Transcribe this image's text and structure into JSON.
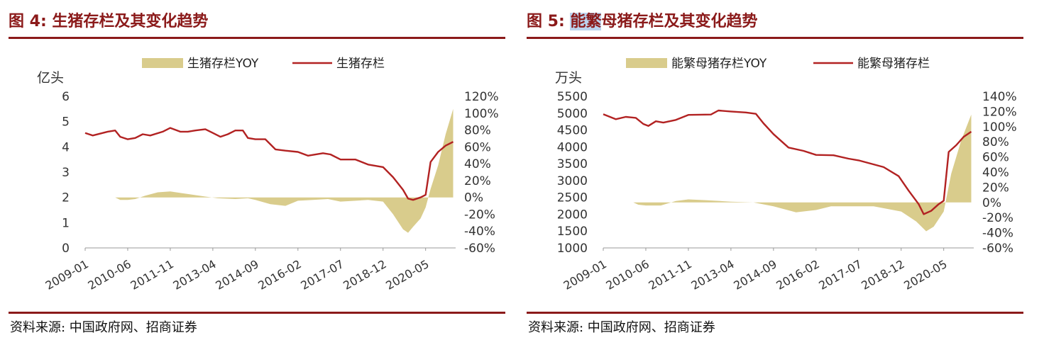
{
  "chart_data": [
    {
      "type": "line",
      "title": "图 4:  生猪存栏及其变化趋势",
      "title_parts": [
        "图 4:  生猪存栏及其变化趋势"
      ],
      "source": "资料来源:  中国政府网、招商证券",
      "ylabel_left": "亿头",
      "ylim_left": [
        0,
        6
      ],
      "yticks_left": [
        "6",
        "5",
        "4",
        "3",
        "2",
        "1",
        "0"
      ],
      "ylim_right": [
        -60,
        120
      ],
      "yticks_right": [
        "120%",
        "100%",
        "80%",
        "60%",
        "40%",
        "20%",
        "0%",
        "-20%",
        "-40%",
        "-60%"
      ],
      "x_labels": [
        "2009-01",
        "2010-06",
        "2011-11",
        "2013-04",
        "2014-09",
        "2016-02",
        "2017-07",
        "2018-12",
        "2020-05"
      ],
      "legend_position": "top",
      "colors": {
        "area": "#d9cc8c",
        "line": "#b22222"
      },
      "series": [
        {
          "name": "生猪存栏YOY",
          "kind": "area",
          "axis": "right",
          "points": [
            [
              "2009-01",
              0
            ],
            [
              "2010-01",
              0
            ],
            [
              "2010-03",
              -3
            ],
            [
              "2010-06",
              -3
            ],
            [
              "2010-09",
              -2
            ],
            [
              "2011-01",
              2
            ],
            [
              "2011-06",
              6
            ],
            [
              "2011-11",
              7
            ],
            [
              "2012-06",
              4
            ],
            [
              "2013-01",
              1
            ],
            [
              "2013-06",
              -1
            ],
            [
              "2014-01",
              -2
            ],
            [
              "2014-06",
              -1
            ],
            [
              "2014-09",
              -3
            ],
            [
              "2015-03",
              -8
            ],
            [
              "2015-09",
              -10
            ],
            [
              "2016-02",
              -4
            ],
            [
              "2016-08",
              -3
            ],
            [
              "2017-02",
              -2
            ],
            [
              "2017-07",
              -5
            ],
            [
              "2018-01",
              -4
            ],
            [
              "2018-06",
              -3
            ],
            [
              "2018-12",
              -5
            ],
            [
              "2019-04",
              -20
            ],
            [
              "2019-08",
              -38
            ],
            [
              "2019-10",
              -42
            ],
            [
              "2019-12",
              -35
            ],
            [
              "2020-03",
              -25
            ],
            [
              "2020-05",
              -12
            ],
            [
              "2020-07",
              10
            ],
            [
              "2020-10",
              38
            ],
            [
              "2021-01",
              75
            ],
            [
              "2021-04",
              105
            ]
          ]
        },
        {
          "name": "生猪存栏",
          "kind": "line",
          "axis": "left",
          "points": [
            [
              "2009-01",
              4.55
            ],
            [
              "2009-04",
              4.45
            ],
            [
              "2009-10",
              4.6
            ],
            [
              "2010-01",
              4.65
            ],
            [
              "2010-03",
              4.4
            ],
            [
              "2010-06",
              4.3
            ],
            [
              "2010-09",
              4.35
            ],
            [
              "2010-12",
              4.5
            ],
            [
              "2011-03",
              4.45
            ],
            [
              "2011-08",
              4.6
            ],
            [
              "2011-11",
              4.75
            ],
            [
              "2012-03",
              4.6
            ],
            [
              "2012-06",
              4.6
            ],
            [
              "2012-09",
              4.65
            ],
            [
              "2013-01",
              4.7
            ],
            [
              "2013-04",
              4.55
            ],
            [
              "2013-07",
              4.4
            ],
            [
              "2013-10",
              4.5
            ],
            [
              "2014-01",
              4.65
            ],
            [
              "2014-04",
              4.65
            ],
            [
              "2014-06",
              4.35
            ],
            [
              "2014-09",
              4.3
            ],
            [
              "2015-01",
              4.3
            ],
            [
              "2015-05",
              3.9
            ],
            [
              "2015-09",
              3.85
            ],
            [
              "2016-02",
              3.8
            ],
            [
              "2016-06",
              3.65
            ],
            [
              "2016-12",
              3.75
            ],
            [
              "2017-03",
              3.7
            ],
            [
              "2017-07",
              3.5
            ],
            [
              "2018-01",
              3.5
            ],
            [
              "2018-06",
              3.3
            ],
            [
              "2018-12",
              3.2
            ],
            [
              "2019-04",
              2.8
            ],
            [
              "2019-08",
              2.3
            ],
            [
              "2019-10",
              1.95
            ],
            [
              "2019-12",
              1.9
            ],
            [
              "2020-03",
              2.0
            ],
            [
              "2020-05",
              2.1
            ],
            [
              "2020-07",
              3.4
            ],
            [
              "2020-10",
              3.8
            ],
            [
              "2021-01",
              4.05
            ],
            [
              "2021-04",
              4.2
            ]
          ]
        }
      ]
    },
    {
      "type": "line",
      "title": "图 5:  能繁母猪存栏及其变化趋势",
      "title_parts": [
        "图 5:  ",
        "能繁",
        "母猪存栏及其变化趋势"
      ],
      "source": "资料来源:  中国政府网、招商证券",
      "ylabel_left": "万头",
      "ylim_left": [
        1000,
        5500
      ],
      "yticks_left": [
        "5500",
        "5000",
        "4500",
        "4000",
        "3500",
        "3000",
        "2500",
        "2000",
        "1500",
        "1000"
      ],
      "ylim_right": [
        -60,
        140
      ],
      "yticks_right": [
        "140%",
        "120%",
        "100%",
        "80%",
        "60%",
        "40%",
        "20%",
        "0%",
        "-20%",
        "-40%",
        "-60%"
      ],
      "x_labels": [
        "2009-01",
        "2010-06",
        "2011-11",
        "2013-04",
        "2014-09",
        "2016-02",
        "2017-07",
        "2018-12",
        "2020-05"
      ],
      "legend_position": "top",
      "colors": {
        "area": "#d9cc8c",
        "line": "#b22222"
      },
      "series": [
        {
          "name": "能繁母猪存栏YOY",
          "kind": "area",
          "axis": "right",
          "points": [
            [
              "2009-01",
              0
            ],
            [
              "2010-01",
              0
            ],
            [
              "2010-03",
              -3
            ],
            [
              "2010-06",
              -4
            ],
            [
              "2010-12",
              -4
            ],
            [
              "2011-06",
              2
            ],
            [
              "2011-11",
              4
            ],
            [
              "2012-06",
              3
            ],
            [
              "2013-04",
              1
            ],
            [
              "2014-01",
              0
            ],
            [
              "2014-09",
              -5
            ],
            [
              "2015-06",
              -13
            ],
            [
              "2016-02",
              -10
            ],
            [
              "2016-08",
              -5
            ],
            [
              "2017-07",
              -5
            ],
            [
              "2018-01",
              -5
            ],
            [
              "2018-12",
              -12
            ],
            [
              "2019-06",
              -25
            ],
            [
              "2019-10",
              -38
            ],
            [
              "2020-01",
              -32
            ],
            [
              "2020-05",
              -12
            ],
            [
              "2020-08",
              38
            ],
            [
              "2020-12",
              82
            ],
            [
              "2021-04",
              116
            ]
          ]
        },
        {
          "name": "能繁母猪存栏",
          "kind": "line",
          "axis": "left",
          "points": [
            [
              "2009-01",
              4970
            ],
            [
              "2009-06",
              4820
            ],
            [
              "2009-10",
              4890
            ],
            [
              "2010-02",
              4860
            ],
            [
              "2010-05",
              4680
            ],
            [
              "2010-07",
              4620
            ],
            [
              "2010-10",
              4760
            ],
            [
              "2011-01",
              4720
            ],
            [
              "2011-06",
              4800
            ],
            [
              "2011-11",
              4950
            ],
            [
              "2012-08",
              4960
            ],
            [
              "2012-11",
              5080
            ],
            [
              "2013-04",
              5050
            ],
            [
              "2013-10",
              5020
            ],
            [
              "2014-02",
              4980
            ],
            [
              "2014-05",
              4700
            ],
            [
              "2014-09",
              4380
            ],
            [
              "2015-03",
              3980
            ],
            [
              "2015-09",
              3880
            ],
            [
              "2016-02",
              3760
            ],
            [
              "2016-09",
              3750
            ],
            [
              "2017-03",
              3650
            ],
            [
              "2017-07",
              3600
            ],
            [
              "2017-12",
              3500
            ],
            [
              "2018-05",
              3400
            ],
            [
              "2018-11",
              3130
            ],
            [
              "2019-03",
              2700
            ],
            [
              "2019-07",
              2300
            ],
            [
              "2019-09",
              2000
            ],
            [
              "2019-12",
              2100
            ],
            [
              "2020-03",
              2300
            ],
            [
              "2020-05",
              2400
            ],
            [
              "2020-07",
              3850
            ],
            [
              "2020-10",
              4050
            ],
            [
              "2021-01",
              4300
            ],
            [
              "2021-04",
              4450
            ]
          ]
        }
      ]
    }
  ]
}
